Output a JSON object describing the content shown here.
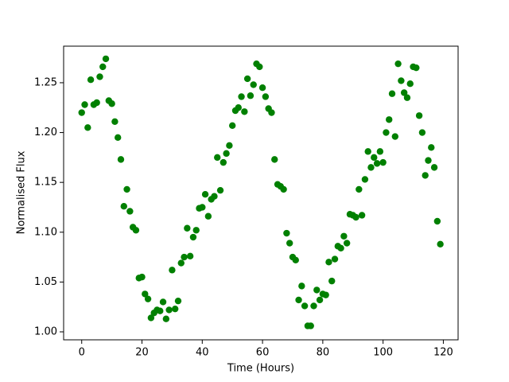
{
  "chart_data": {
    "type": "scatter",
    "xlabel": "Time (Hours)",
    "ylabel": "Normalised Flux",
    "color": "#008000",
    "x": [
      0,
      1,
      2,
      3,
      4,
      5,
      6,
      7,
      8,
      9,
      10,
      11,
      12,
      13,
      14,
      15,
      16,
      17,
      18,
      19,
      20,
      21,
      22,
      23,
      24,
      25,
      26,
      27,
      28,
      29,
      30,
      31,
      32,
      33,
      34,
      35,
      36,
      37,
      38,
      39,
      40,
      41,
      42,
      43,
      44,
      45,
      46,
      47,
      48,
      49,
      50,
      51,
      52,
      53,
      54,
      55,
      56,
      57,
      58,
      59,
      60,
      61,
      62,
      63,
      64,
      65,
      66,
      67,
      68,
      69,
      70,
      71,
      72,
      73,
      74,
      75,
      76,
      77,
      78,
      79,
      80,
      81,
      82,
      83,
      84,
      85,
      86,
      87,
      88,
      89,
      90,
      91,
      92,
      93,
      94,
      95,
      96,
      97,
      98,
      99,
      100,
      101,
      102,
      103,
      104,
      105,
      106,
      107,
      108,
      109,
      110,
      111,
      112,
      113,
      114,
      115,
      116,
      117,
      118,
      119
    ],
    "values": [
      1.22,
      1.228,
      1.205,
      1.253,
      1.228,
      1.23,
      1.256,
      1.266,
      1.274,
      1.232,
      1.229,
      1.211,
      1.195,
      1.173,
      1.126,
      1.143,
      1.121,
      1.105,
      1.102,
      1.054,
      1.055,
      1.038,
      1.033,
      1.014,
      1.019,
      1.022,
      1.021,
      1.03,
      1.013,
      1.022,
      1.062,
      1.023,
      1.031,
      1.069,
      1.075,
      1.104,
      1.076,
      1.095,
      1.102,
      1.124,
      1.125,
      1.138,
      1.116,
      1.133,
      1.136,
      1.175,
      1.142,
      1.17,
      1.179,
      1.187,
      1.207,
      1.222,
      1.225,
      1.236,
      1.221,
      1.254,
      1.237,
      1.248,
      1.269,
      1.266,
      1.245,
      1.236,
      1.224,
      1.22,
      1.173,
      1.148,
      1.146,
      1.143,
      1.099,
      1.089,
      1.075,
      1.072,
      1.032,
      1.046,
      1.026,
      1.006,
      1.006,
      1.026,
      1.042,
      1.032,
      1.038,
      1.037,
      1.07,
      1.051,
      1.073,
      1.086,
      1.084,
      1.096,
      1.089,
      1.118,
      1.117,
      1.115,
      1.143,
      1.117,
      1.153,
      1.181,
      1.165,
      1.175,
      1.169,
      1.181,
      1.17,
      1.2,
      1.213,
      1.239,
      1.196,
      1.269,
      1.252,
      1.24,
      1.235,
      1.249,
      1.266,
      1.265,
      1.217,
      1.2,
      1.157,
      1.172,
      1.185,
      1.165,
      1.111,
      1.088
    ],
    "xlim": [
      -6,
      124.9
    ],
    "ylim": [
      0.992,
      1.2867
    ],
    "xticks": [
      0,
      20,
      40,
      60,
      80,
      100,
      120
    ],
    "yticks": [
      {
        "value": 1.0,
        "label": "1.00"
      },
      1.05,
      {
        "value": 1.1,
        "label": "1.10"
      },
      1.15,
      {
        "value": 1.2,
        "label": "1.20"
      },
      1.25
    ]
  }
}
